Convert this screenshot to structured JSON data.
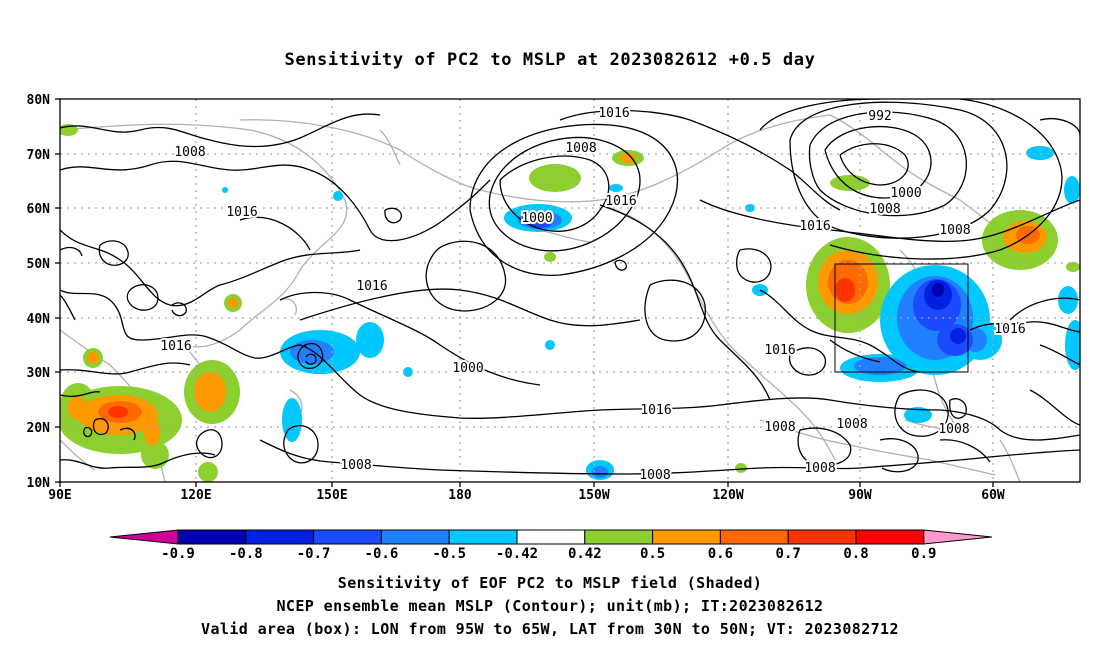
{
  "title": "Sensitivity of PC2 to MSLP at 2023082612 +0.5 day",
  "axes": {
    "lat_labels": [
      "80N",
      "70N",
      "60N",
      "50N",
      "40N",
      "30N",
      "20N",
      "10N"
    ],
    "lon_labels": [
      "90E",
      "120E",
      "150E",
      "180",
      "150W",
      "120W",
      "90W",
      "60W"
    ]
  },
  "contours": {
    "unit": "mb",
    "labels": [
      "1016",
      "1008",
      "1016",
      "1008",
      "1000",
      "1016",
      "1016",
      "1000",
      "992",
      "1000",
      "1008",
      "1016",
      "1008",
      "1016",
      "1016",
      "1016",
      "1016",
      "1008",
      "1008",
      "1008",
      "1008",
      "1008",
      "1008"
    ]
  },
  "box": {
    "lon_from": "95W",
    "lon_to": "65W",
    "lat_from": "30N",
    "lat_to": "50N"
  },
  "colorbar": {
    "labels": [
      "-0.9",
      "-0.8",
      "-0.7",
      "-0.6",
      "-0.5",
      "-0.42",
      "0.42",
      "0.5",
      "0.6",
      "0.7",
      "0.8",
      "0.9"
    ],
    "colors": [
      "#cc0099",
      "#0000b0",
      "#0022e0",
      "#1a4bff",
      "#2080ff",
      "#00c8ff",
      "#ffffff",
      "#8ccf2e",
      "#ff9900",
      "#ff6a00",
      "#ff3300",
      "#ff0000",
      "#ff99cc"
    ]
  },
  "captions": {
    "line1": "Sensitivity of EOF PC2 to MSLP field (Shaded)",
    "line2": "NCEP ensemble mean MSLP (Contour); unit(mb); IT:2023082612",
    "line3": "Valid area (box): LON from 95W to 65W, LAT from 30N to 50N; VT: 2023082712"
  }
}
